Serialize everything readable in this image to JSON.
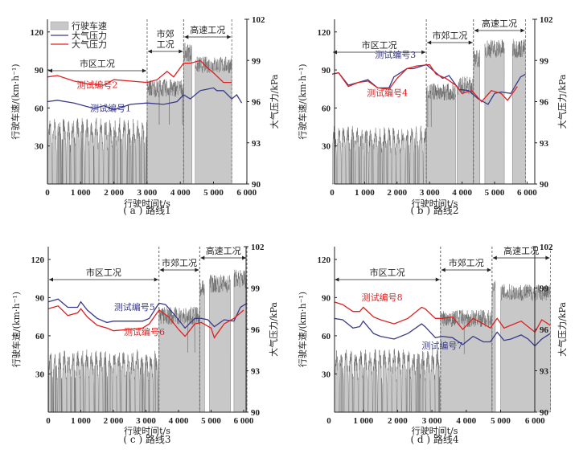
{
  "colors": {
    "speed_fill": "#c8c8c8",
    "speed_line": "#222222",
    "blue": "#3a3a8c",
    "red": "#e02020"
  },
  "legend": {
    "speed": "行驶车速",
    "pressure_blue": "大气压力",
    "pressure_red": "大气压力"
  },
  "chart_data": [
    {
      "type": "area+line",
      "id": "a",
      "caption": "( a ) 路线1",
      "xlabel": "行驶时间t/s",
      "ylabel_left": "行驶车速/(km·h⁻¹)",
      "ylabel_right": "大气压力/kPa",
      "xlim": [
        0,
        6000
      ],
      "ylim_left": [
        0,
        130
      ],
      "ylim_right": [
        90,
        102
      ],
      "xticks": [
        "0",
        "1 000",
        "2 000",
        "3 000",
        "4 000",
        "5 000",
        "6 000"
      ],
      "yticks_left": [
        "30",
        "60",
        "90",
        "120"
      ],
      "yticks_right": [
        "90",
        "93",
        "96",
        "99",
        "102"
      ],
      "zones": [
        {
          "label": "市区工况",
          "x0": 0,
          "x1": 3000
        },
        {
          "label": "市郊\n工况",
          "x0": 3000,
          "x1": 4100
        },
        {
          "label": "高速工况",
          "x0": 4100,
          "x1": 5550
        }
      ],
      "speed_profile": [
        [
          0,
          3000,
          48,
          "city"
        ],
        [
          3000,
          4100,
          78,
          "suburb"
        ],
        [
          4100,
          4350,
          105,
          "hw"
        ],
        [
          4450,
          5550,
          95,
          "hw"
        ]
      ],
      "series": [
        {
          "name": "测试编号1",
          "color": "blue",
          "x": [
            0,
            300,
            800,
            1400,
            1700,
            2000,
            2500,
            3000,
            3500,
            3900,
            4100,
            4300,
            4600,
            4800,
            5000,
            5100,
            5300,
            5550,
            5700,
            5850
          ],
          "y": [
            96.0,
            96.1,
            95.9,
            95.5,
            95.7,
            95.4,
            95.8,
            95.9,
            95.8,
            96.0,
            96.5,
            96.2,
            96.8,
            96.9,
            97.0,
            96.8,
            96.8,
            96.2,
            96.5,
            95.9
          ]
        },
        {
          "name": "测试编号2",
          "color": "red",
          "x": [
            0,
            300,
            800,
            1200,
            1700,
            2000,
            2500,
            3000,
            3300,
            3600,
            3800,
            4100,
            4300,
            4600,
            4800,
            5000,
            5300,
            5550
          ],
          "y": [
            97.8,
            97.9,
            97.5,
            97.3,
            97.2,
            97.6,
            97.5,
            97.4,
            97.6,
            98.2,
            97.8,
            98.8,
            98.8,
            99.0,
            98.5,
            98.1,
            97.4,
            97.4
          ]
        }
      ],
      "annotations": [
        {
          "text": "测试编号2",
          "color": "red",
          "x": 1500,
          "y": 97.0
        },
        {
          "text": "测试编号1",
          "color": "blue",
          "x": 1900,
          "y": 95.3
        }
      ]
    },
    {
      "type": "area+line",
      "id": "b",
      "caption": "( b ) 路线2",
      "xlabel": "行驶时间t/s",
      "ylabel_left": "行驶车速/(km·h⁻¹)",
      "ylabel_right": "大气压力/kPa",
      "xlim": [
        0,
        6000
      ],
      "ylim_left": [
        0,
        130
      ],
      "ylim_right": [
        90,
        102
      ],
      "xticks": [
        "0",
        "1 000",
        "2 000",
        "3 000",
        "4 000",
        "5 000",
        "6 000"
      ],
      "yticks_left": [
        "30",
        "60",
        "90",
        "120"
      ],
      "yticks_right": [
        "90",
        "93",
        "96",
        "99",
        "102"
      ],
      "zones": [
        {
          "label": "市区工况",
          "x0": 0,
          "x1": 2900
        },
        {
          "label": "市郊工况",
          "x0": 2900,
          "x1": 4350
        },
        {
          "label": "高速工况",
          "x0": 4350,
          "x1": 5950
        }
      ],
      "speed_profile": [
        [
          0,
          2900,
          42,
          "city"
        ],
        [
          2900,
          3800,
          75,
          "suburb"
        ],
        [
          3850,
          4350,
          80,
          "suburb"
        ],
        [
          4350,
          4550,
          100,
          "hw"
        ],
        [
          4700,
          5300,
          108,
          "hw"
        ],
        [
          5550,
          5950,
          108,
          "hw"
        ]
      ],
      "series": [
        {
          "name": "测试编号3",
          "color": "blue",
          "x": [
            0,
            200,
            500,
            800,
            1100,
            1400,
            1750,
            1900,
            2300,
            2500,
            2900,
            3100,
            3400,
            3600,
            3900,
            4200,
            4500,
            4800,
            5000,
            5200,
            5500,
            5800,
            5950
          ],
          "y": [
            98.0,
            98.1,
            97.2,
            97.4,
            97.6,
            97.0,
            97.0,
            97.8,
            98.4,
            98.4,
            98.7,
            98.3,
            97.7,
            97.9,
            96.9,
            96.8,
            96.2,
            95.8,
            96.6,
            96.7,
            96.6,
            97.8,
            98.0
          ]
        },
        {
          "name": "测试编号4",
          "color": "red",
          "x": [
            0,
            200,
            500,
            800,
            1100,
            1400,
            1750,
            2000,
            2300,
            2600,
            3000,
            3200,
            3500,
            3800,
            4000,
            4300,
            4600,
            4900,
            5200,
            5400,
            5700
          ],
          "y": [
            98.0,
            98.1,
            97.1,
            97.4,
            97.5,
            97.0,
            96.9,
            97.7,
            98.4,
            98.6,
            98.7,
            98.0,
            97.7,
            97.2,
            96.6,
            96.8,
            96.0,
            96.8,
            96.6,
            96.1,
            97.1
          ]
        }
      ],
      "annotations": [
        {
          "text": "测试编号3",
          "color": "blue",
          "x": 1950,
          "y": 99.2
        },
        {
          "text": "测试编号4",
          "color": "red",
          "x": 1700,
          "y": 96.4
        }
      ]
    },
    {
      "type": "area+line",
      "id": "c",
      "caption": "( c ) 路线3",
      "xlabel": "行驶时间t/s",
      "ylabel_left": "行驶车速/(km·h⁻¹)",
      "ylabel_right": "大气压力/kPa",
      "xlim": [
        0,
        6000
      ],
      "ylim_left": [
        0,
        130
      ],
      "ylim_right": [
        90,
        102
      ],
      "xticks": [
        "0",
        "1 000",
        "2 000",
        "3 000",
        "4 000",
        "5 000",
        "6 000"
      ],
      "yticks_left": [
        "30",
        "60",
        "90",
        "120"
      ],
      "yticks_right": [
        "90",
        "93",
        "96",
        "99",
        "102"
      ],
      "zones": [
        {
          "label": "市区工况",
          "x0": 0,
          "x1": 3400
        },
        {
          "label": "市郊工况",
          "x0": 3400,
          "x1": 4650
        },
        {
          "label": "高速工况",
          "x0": 4650,
          "x1": 6100
        }
      ],
      "speed_profile": [
        [
          0,
          3400,
          45,
          "city"
        ],
        [
          3400,
          4650,
          78,
          "suburb"
        ],
        [
          4650,
          4800,
          98,
          "hw"
        ],
        [
          4950,
          5600,
          102,
          "hw"
        ],
        [
          5700,
          6100,
          106,
          "hw"
        ]
      ],
      "series": [
        {
          "name": "测试编号5",
          "color": "blue",
          "x": [
            0,
            300,
            600,
            900,
            1000,
            1200,
            1500,
            1800,
            2000,
            2500,
            2900,
            3100,
            3400,
            3600,
            3900,
            4200,
            4500,
            4700,
            4900,
            5100,
            5400,
            5700,
            5900,
            6100
          ],
          "y": [
            98.0,
            98.2,
            97.6,
            97.6,
            98.0,
            97.4,
            96.8,
            96.5,
            96.6,
            96.6,
            96.6,
            96.8,
            97.9,
            97.8,
            97.0,
            96.1,
            96.8,
            96.8,
            96.7,
            96.2,
            96.7,
            96.6,
            97.6,
            97.9
          ]
        },
        {
          "name": "测试编号6",
          "color": "red",
          "x": [
            0,
            300,
            600,
            900,
            1000,
            1200,
            1500,
            1800,
            2000,
            2500,
            2900,
            3100,
            3400,
            3700,
            4000,
            4200,
            4500,
            4700,
            5000,
            5100,
            5400,
            5700,
            6000
          ],
          "y": [
            97.5,
            97.7,
            97.0,
            97.2,
            97.5,
            96.9,
            96.3,
            96.1,
            95.9,
            96.0,
            96.1,
            96.4,
            97.4,
            96.9,
            96.0,
            95.5,
            96.4,
            96.5,
            96.1,
            95.4,
            96.4,
            96.8,
            97.4
          ]
        }
      ],
      "annotations": [
        {
          "text": "测试编号5",
          "color": "blue",
          "x": 2650,
          "y": 97.4
        },
        {
          "text": "测试编号6",
          "color": "red",
          "x": 2950,
          "y": 95.6
        }
      ]
    },
    {
      "type": "area+line",
      "id": "d",
      "caption": "( d ) 路线4",
      "xlabel": "行驶时间t/s",
      "ylabel_left": "行驶车速/(km·h⁻¹)",
      "ylabel_right": "大气压力/kPa",
      "xlim": [
        0,
        6500
      ],
      "ylim_left": [
        0,
        130
      ],
      "ylim_right": [
        90,
        102
      ],
      "xticks": [
        "0",
        "1 000",
        "2 000",
        "3 000",
        "4 000",
        "5 000",
        "6 000"
      ],
      "yticks_left": [
        "30",
        "60",
        "90",
        "120"
      ],
      "yticks_right": [
        "90",
        "93",
        "96",
        "99",
        "102"
      ],
      "zones": [
        {
          "label": "市区工况",
          "x0": 150,
          "x1": 3250
        },
        {
          "label": "市郊工况",
          "x0": 3250,
          "x1": 4750
        },
        {
          "label": "高速工况",
          "x0": 4750,
          "x1": 6450
        }
      ],
      "speed_profile": [
        [
          150,
          3250,
          46,
          "city"
        ],
        [
          3250,
          4750,
          76,
          "suburb"
        ],
        [
          4750,
          4850,
          98,
          "hw"
        ],
        [
          5000,
          6450,
          95,
          "hw"
        ]
      ],
      "series": [
        {
          "name": "测试编号7",
          "color": "blue",
          "x": [
            150,
            400,
            700,
            900,
            1000,
            1300,
            1500,
            1900,
            2300,
            2700,
            2800,
            3100,
            3300,
            3600,
            3900,
            4200,
            4500,
            4700,
            4900,
            5100,
            5300,
            5600,
            5800,
            6000,
            6200,
            6450
          ],
          "y": [
            96.8,
            96.7,
            96.1,
            96.2,
            96.6,
            95.7,
            95.5,
            95.3,
            95.7,
            96.4,
            96.2,
            95.4,
            95.5,
            95.4,
            94.9,
            95.5,
            95.1,
            95.1,
            95.8,
            95.2,
            95.3,
            95.6,
            95.3,
            94.8,
            95.3,
            95.7
          ]
        },
        {
          "name": "测试编号8",
          "color": "red",
          "x": [
            150,
            400,
            700,
            900,
            1000,
            1300,
            1500,
            1900,
            2300,
            2700,
            2800,
            3100,
            3300,
            3600,
            3900,
            4200,
            4500,
            4700,
            4900,
            5100,
            5300,
            5600,
            5800,
            6000,
            6200,
            6450
          ],
          "y": [
            98.0,
            97.8,
            97.3,
            97.3,
            97.6,
            96.9,
            96.7,
            96.4,
            96.8,
            97.6,
            97.5,
            96.8,
            96.8,
            96.9,
            96.0,
            96.8,
            96.4,
            96.1,
            96.8,
            96.1,
            96.3,
            96.6,
            96.2,
            95.8,
            96.7,
            96.3
          ]
        }
      ],
      "annotations": [
        {
          "text": "测试编号8",
          "color": "red",
          "x": 1550,
          "y": 98.1
        },
        {
          "text": "测试编号7",
          "color": "blue",
          "x": 3300,
          "y": 94.6
        }
      ]
    }
  ]
}
